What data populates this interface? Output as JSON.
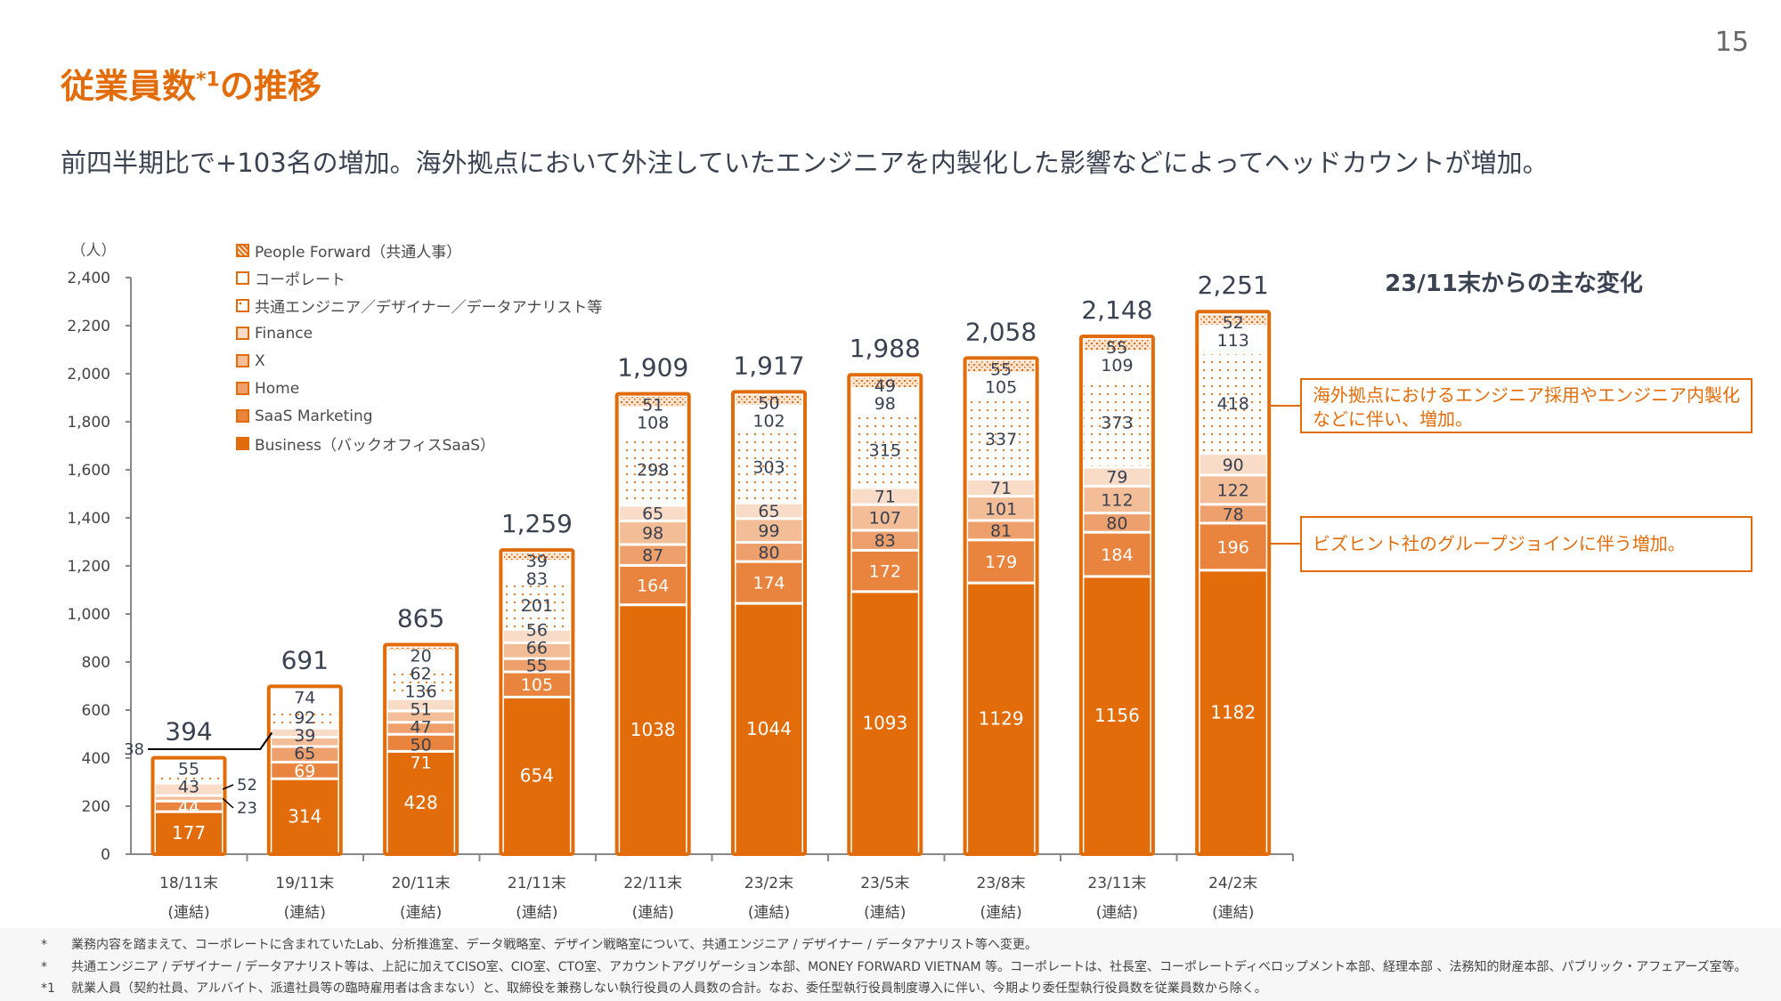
{
  "page_number": "15",
  "title": {
    "main": "従業員数",
    "sup": "*1",
    "rest": "の推移"
  },
  "subtitle": "前四半期比で+103名の増加。海外拠点において外注していたエンジニアを内製化した影響などによってヘッドカウントが増加。",
  "side": {
    "title": "23/11末からの主な変化",
    "notes": [
      "海外拠点におけるエンジニア採用やエンジニア内製化などに伴い、増加。",
      "ビズヒント社のグループジョインに伴う増加。"
    ]
  },
  "footnotes": [
    {
      "mark": "*",
      "text": "業務内容を踏まえて、コーポレートに含まれていたLab、分析推進室、データ戦略室、デザイン戦略室について、共通エンジニア / デザイナー / データアナリスト等へ変更。"
    },
    {
      "mark": "*",
      "text": "共通エンジニア / デザイナー / データアナリスト等は、上記に加えてCISO室、CIO室、CTO室、アカウントアグリゲーション本部、MONEY FORWARD VIETNAM 等。コーポレートは、社長室、コーポレートディベロップメント本部、経理本部 、法務知的財産本部、パブリック・アフェアーズ室等。"
    },
    {
      "mark": "*1",
      "text": "就業人員（契約社員、アルバイト、派遣社員等の臨時雇用者は含まない）と、取締役を兼務しない執行役員の人員数の合計。なお、委任型執行役員制度導入に伴い、今期より委任型執行役員数を従業員数から除く。"
    }
  ],
  "chart_data": {
    "type": "bar",
    "stacked": true,
    "ylabel": "（人）",
    "ylim": [
      0,
      2400
    ],
    "yticks": [
      "0",
      "200",
      "400",
      "600",
      "800",
      "1,000",
      "1,200",
      "1,400",
      "1,600",
      "1,800",
      "2,000",
      "2,200",
      "2,400"
    ],
    "categories": [
      "18/11末",
      "19/11末",
      "20/11末",
      "21/11末",
      "22/11末",
      "23/2末",
      "23/5末",
      "23/8末",
      "23/11末",
      "24/2末"
    ],
    "category_sub": "(連結)",
    "totals": [
      "394",
      "691",
      "865",
      "1,259",
      "1,909",
      "1,917",
      "1,988",
      "2,058",
      "2,148",
      "2,251"
    ],
    "legend_placement": "top-left",
    "series": [
      {
        "name": "Business（バックオフィスSaaS）",
        "color": "#e36c0a",
        "pattern": "solid",
        "values": [
          177,
          314,
          428,
          654,
          1038,
          1044,
          1093,
          1129,
          1156,
          1182
        ]
      },
      {
        "name": "SaaS Marketing",
        "color": "#e8843e",
        "pattern": "solid",
        "values": [
          44,
          69,
          71,
          105,
          164,
          174,
          172,
          179,
          184,
          196
        ]
      },
      {
        "name": "Home",
        "color": "#eea06c",
        "pattern": "solid",
        "values": [
          0,
          65,
          50,
          55,
          87,
          80,
          83,
          81,
          80,
          78
        ]
      },
      {
        "name": "X",
        "color": "#f3bd97",
        "pattern": "solid",
        "values": [
          23,
          39,
          47,
          66,
          98,
          99,
          107,
          101,
          112,
          122
        ]
      },
      {
        "name": "Finance",
        "color": "#f9dcc8",
        "pattern": "solid",
        "values": [
          52,
          38,
          51,
          56,
          65,
          65,
          71,
          71,
          79,
          90
        ]
      },
      {
        "name": "共通エンジニア／デザイナー／データアナリスト等",
        "color": "#ffffff",
        "pattern": "dots",
        "values": [
          43,
          92,
          136,
          201,
          298,
          303,
          315,
          337,
          373,
          418
        ]
      },
      {
        "name": "コーポレート",
        "color": "#ffffff",
        "pattern": "solid",
        "values": [
          55,
          74,
          62,
          83,
          108,
          102,
          98,
          105,
          109,
          113
        ]
      },
      {
        "name": "People Forward（共通人事）",
        "color": "#f6c9a6",
        "pattern": "hatch",
        "values": [
          0,
          0,
          20,
          39,
          51,
          50,
          49,
          55,
          55,
          52
        ]
      }
    ],
    "accent": "#e36c0a",
    "grid": false
  }
}
